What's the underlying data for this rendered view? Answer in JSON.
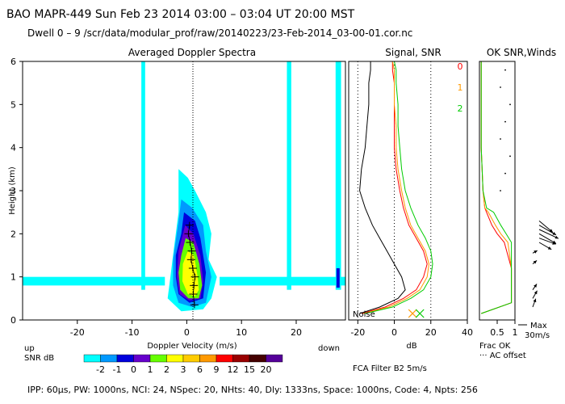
{
  "header": {
    "line1": "BAO  MAPR-449  Sun Feb 23 2014 03:00 – 03:04 UT 20:00 MST",
    "line2": "Dwell   0 –   9    /scr/data/modular_prof/raw/20140223/23-Feb-2014_03-00-01.cor.nc"
  },
  "footer": "IPP:  60μs,   PW: 1000ns,   NCI:  24,   NSpec: 20,  NHts: 40,   Dly: 1333ns,   Space: 1000ns,   Code: 4,   Npts: 256",
  "chart_data": [
    {
      "type": "heatmap",
      "title": "Averaged Doppler Spectra",
      "xlabel": "Doppler Velocity (m/s)",
      "ylabel": "Height (km)",
      "xlim": [
        -30,
        29
      ],
      "ylim": [
        0,
        6
      ],
      "xticks": [
        -20,
        -10,
        0,
        10,
        20
      ],
      "yticks": [
        0,
        1,
        2,
        3,
        4,
        5,
        6
      ],
      "left_note": "up",
      "right_note": "down",
      "peak_velocity_profile": {
        "height_km": [
          0.35,
          0.6,
          0.8,
          1.0,
          1.2,
          1.4,
          1.6,
          1.8,
          2.0,
          2.2
        ],
        "velocity_ms": [
          1.4,
          1.2,
          1.3,
          1.5,
          1.1,
          0.8,
          0.9,
          0.6,
          0.3,
          0.5
        ]
      },
      "colorbar": {
        "label": "SNR dB",
        "ticks": [
          "-2",
          "-1",
          "0",
          "1",
          "2",
          "3",
          "6",
          "9",
          "12",
          "15",
          "20"
        ],
        "colors": [
          "#00ffff",
          "#0099ff",
          "#0000dd",
          "#6600cc",
          "#66ff00",
          "#ffff00",
          "#ffcc00",
          "#ff9900",
          "#ff0000",
          "#990000",
          "#440000",
          "#550099"
        ]
      }
    },
    {
      "type": "line",
      "title": "Signal, SNR",
      "xlabel": "dB",
      "xlim": [
        -25,
        40
      ],
      "ylim": [
        0,
        6
      ],
      "xticks": [
        -20,
        0,
        20,
        40
      ],
      "noise_label": "Noise",
      "series": [
        {
          "name": "0",
          "color": "#ff0000",
          "x": [
            -18,
            -5,
            5,
            12,
            16,
            18,
            16,
            12,
            8,
            5,
            3,
            1,
            0,
            0,
            0,
            0,
            -1,
            -1
          ],
          "y": [
            0.15,
            0.3,
            0.5,
            0.7,
            1.0,
            1.3,
            1.6,
            1.9,
            2.2,
            2.6,
            3.0,
            3.5,
            4.0,
            4.5,
            5.0,
            5.5,
            5.8,
            6.0
          ]
        },
        {
          "name": "1",
          "color": "#ff9900",
          "x": [
            -17,
            -3,
            7,
            14,
            18,
            19,
            17,
            13,
            9,
            6,
            4,
            2,
            1,
            1,
            0,
            0,
            0,
            -1
          ],
          "y": [
            0.15,
            0.3,
            0.5,
            0.7,
            1.0,
            1.3,
            1.6,
            1.9,
            2.2,
            2.6,
            3.0,
            3.5,
            4.0,
            4.5,
            5.0,
            5.5,
            5.8,
            6.0
          ]
        },
        {
          "name": "2",
          "color": "#00cc00",
          "x": [
            -16,
            -1,
            9,
            16,
            20,
            21,
            20,
            17,
            13,
            9,
            6,
            4,
            3,
            2,
            2,
            1,
            1,
            0
          ],
          "y": [
            0.15,
            0.3,
            0.5,
            0.7,
            1.0,
            1.3,
            1.6,
            1.9,
            2.2,
            2.6,
            3.0,
            3.5,
            4.0,
            4.5,
            5.0,
            5.5,
            5.8,
            6.0
          ]
        },
        {
          "name": "signal",
          "color": "#000000",
          "x": [
            -19,
            -8,
            2,
            6,
            4,
            0,
            -4,
            -8,
            -12,
            -16,
            -19,
            -18,
            -16,
            -15,
            -14,
            -14,
            -13,
            -13
          ],
          "y": [
            0.15,
            0.3,
            0.5,
            0.7,
            1.0,
            1.3,
            1.6,
            1.9,
            2.2,
            2.6,
            3.0,
            3.5,
            4.0,
            4.5,
            5.0,
            5.5,
            5.8,
            6.0
          ]
        }
      ],
      "noise_markers": [
        {
          "x": 10,
          "color": "#ff9900"
        },
        {
          "x": 14,
          "color": "#00cc00"
        }
      ]
    },
    {
      "type": "line",
      "title": "OK SNR,Winds",
      "xlim": [
        0,
        1
      ],
      "ylim": [
        0,
        6
      ],
      "xticks": [
        0.5,
        1
      ],
      "xlabel": "Frac OK",
      "offset_note": "··· AC offset",
      "wind_scale_label": "Max",
      "wind_scale_value": "30m/s",
      "series": [
        {
          "name": "0",
          "color": "#ff0000",
          "x": [
            0.05,
            0.9,
            0.9,
            0.9,
            0.7,
            0.5,
            0.35,
            0.2,
            0.15,
            0.1,
            0.05,
            0.05,
            0.05
          ],
          "y": [
            0.15,
            0.4,
            0.6,
            1.2,
            1.8,
            2.0,
            2.2,
            2.5,
            2.6,
            3.0,
            4.0,
            5.0,
            6.0
          ]
        },
        {
          "name": "1",
          "color": "#ff9900",
          "x": [
            0.05,
            0.9,
            0.9,
            0.9,
            0.8,
            0.6,
            0.45,
            0.25,
            0.15,
            0.1,
            0.05,
            0.05,
            0.05
          ],
          "y": [
            0.15,
            0.4,
            0.6,
            1.2,
            1.8,
            2.0,
            2.2,
            2.5,
            2.6,
            3.0,
            4.0,
            5.0,
            6.0
          ]
        },
        {
          "name": "2",
          "color": "#00cc00",
          "x": [
            0.05,
            0.9,
            0.9,
            0.9,
            0.9,
            0.75,
            0.6,
            0.4,
            0.2,
            0.1,
            0.05,
            0.05,
            0.05
          ],
          "y": [
            0.15,
            0.4,
            0.6,
            1.2,
            1.8,
            2.0,
            2.2,
            2.5,
            2.6,
            3.0,
            4.0,
            5.0,
            6.0
          ]
        }
      ],
      "ac_offset_height_km": [
        3.0,
        3.4,
        3.8,
        4.2,
        4.6,
        5.0,
        5.4,
        5.8
      ],
      "winds": [
        {
          "h": 0.3,
          "speed": 10,
          "dir_deg": 200
        },
        {
          "h": 0.5,
          "speed": 10,
          "dir_deg": 210
        },
        {
          "h": 0.7,
          "speed": 8,
          "dir_deg": 215
        },
        {
          "h": 1.3,
          "speed": 6,
          "dir_deg": 230
        },
        {
          "h": 1.55,
          "speed": 6,
          "dir_deg": 240
        },
        {
          "h": 1.8,
          "speed": 16,
          "dir_deg": 300
        },
        {
          "h": 1.9,
          "speed": 20,
          "dir_deg": 290
        },
        {
          "h": 2.0,
          "speed": 22,
          "dir_deg": 300
        },
        {
          "h": 2.1,
          "speed": 24,
          "dir_deg": 295
        },
        {
          "h": 2.2,
          "speed": 22,
          "dir_deg": 300
        },
        {
          "h": 2.3,
          "speed": 20,
          "dir_deg": 310
        }
      ]
    }
  ],
  "filter_note": "FCA Filter B2   5m/s"
}
